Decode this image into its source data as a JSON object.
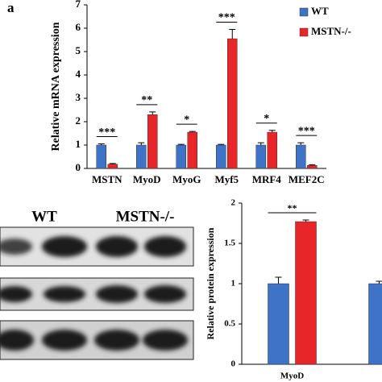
{
  "panel_label": "a",
  "chart_data": [
    {
      "type": "bar",
      "y_label": "Relative mRNA expression",
      "categories": [
        "MSTN",
        "MyoD",
        "MyoG",
        "Myf5",
        "MRF4",
        "MEF2C"
      ],
      "series": [
        {
          "name": "WT",
          "color": "#3f73c8",
          "values": [
            1,
            1,
            1,
            1,
            1,
            1
          ],
          "errors": [
            0.05,
            0.1,
            0.03,
            0.03,
            0.1,
            0.1
          ]
        },
        {
          "name": "MSTN-/-",
          "color": "#e8262a",
          "values": [
            0.18,
            2.3,
            1.55,
            5.55,
            1.55,
            0.13
          ],
          "errors": [
            0.03,
            0.12,
            0.03,
            0.4,
            0.08,
            0.03
          ]
        }
      ],
      "significance": [
        "***",
        "**",
        "*",
        "***",
        "*",
        "***"
      ],
      "ylim": [
        0,
        7
      ],
      "yticks": [
        0,
        1,
        2,
        3,
        4,
        5,
        6,
        7
      ],
      "grid": false,
      "legend": "top-right"
    },
    {
      "type": "bar",
      "y_label": "Relative protein expression",
      "categories": [
        "MyoD",
        null
      ],
      "series": [
        {
          "color": "#3f73c8",
          "values": [
            1,
            1
          ],
          "errors": [
            0.08,
            0.03
          ]
        },
        {
          "color": "#e8262a",
          "values": [
            1.77,
            null
          ],
          "errors": [
            0.02,
            null
          ]
        }
      ],
      "significance": [
        "**",
        null
      ],
      "ylim": [
        0,
        2
      ],
      "yticks": [
        0,
        0.5,
        1,
        1.5,
        2
      ],
      "grid": false
    }
  ],
  "blot": {
    "labels": [
      "WT",
      "MSTN-/-"
    ]
  }
}
